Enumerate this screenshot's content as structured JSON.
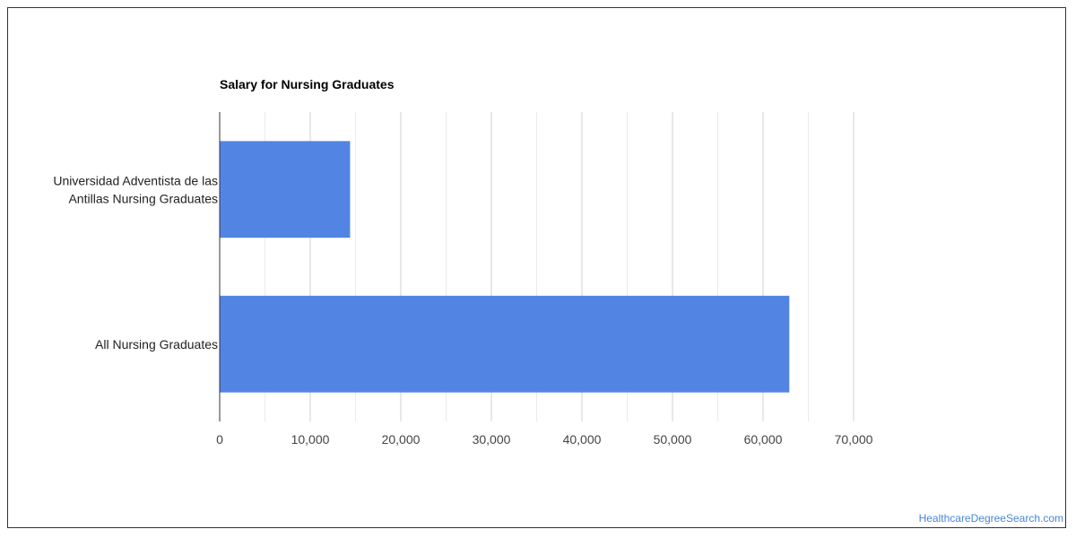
{
  "source_credit": "HealthcareDegreeSearch.com",
  "colors": {
    "bar": "#5285e3",
    "grid_major": "#d0d0d0",
    "grid_minor": "#ebebeb",
    "axis": "#333333",
    "credit": "#4a86d6"
  },
  "chart_data": {
    "type": "bar",
    "orientation": "horizontal",
    "title": "Salary for Nursing Graduates",
    "categories": [
      [
        "Universidad Adventista de las",
        "Antillas Nursing Graduates"
      ],
      [
        "All Nursing Graduates"
      ]
    ],
    "values": [
      14400,
      62900
    ],
    "xlim": [
      0,
      70000
    ],
    "xticks": [
      0,
      10000,
      20000,
      30000,
      40000,
      50000,
      60000,
      70000
    ],
    "xtick_labels": [
      "0",
      "10,000",
      "20,000",
      "30,000",
      "40,000",
      "50,000",
      "60,000",
      "70,000"
    ],
    "grid": true,
    "legend": "none"
  }
}
